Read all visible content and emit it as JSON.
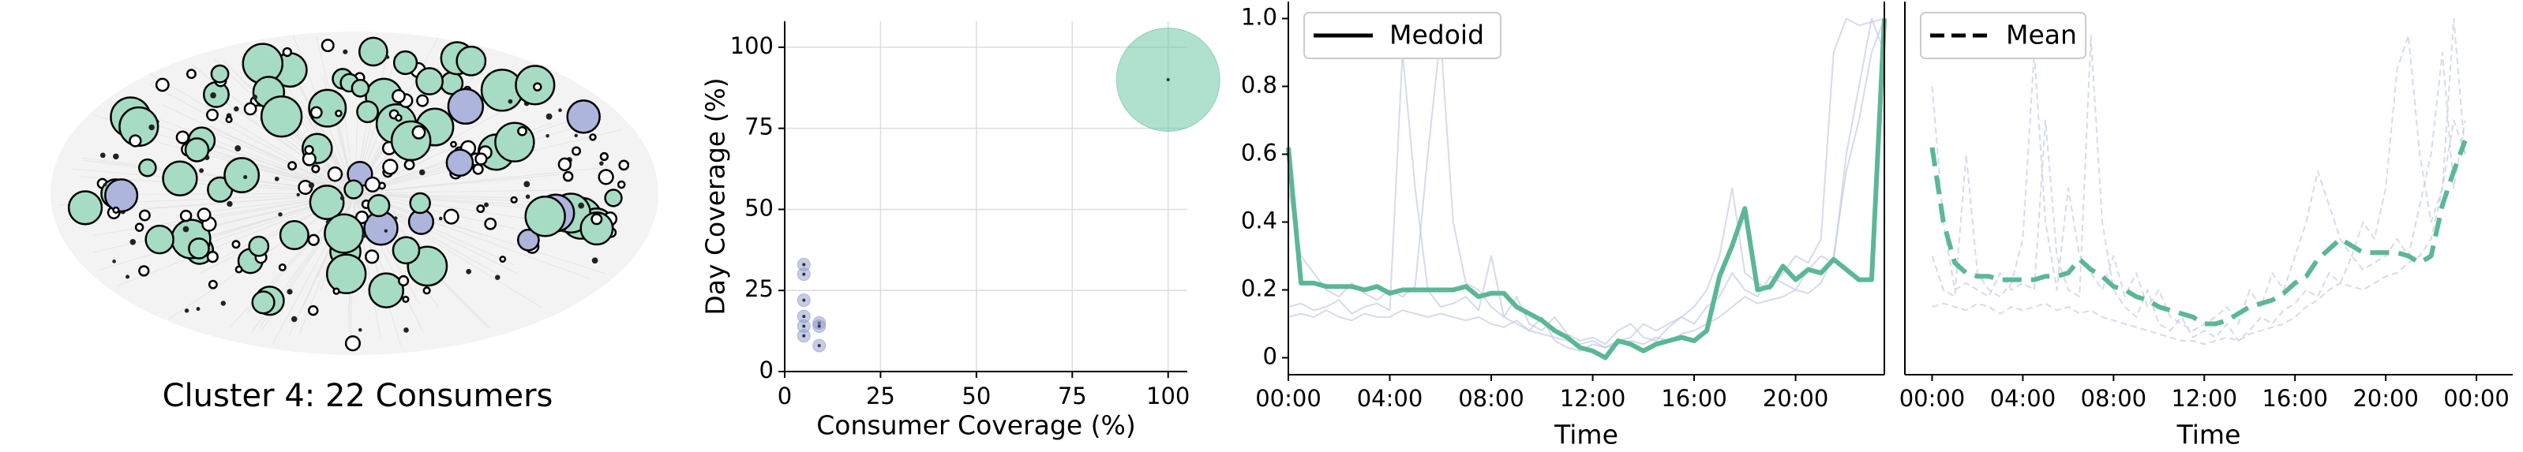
{
  "chart_data": [
    {
      "type": "network",
      "title": "Cluster 4: 22 Consumers"
    },
    {
      "type": "scatter",
      "xlabel": "Consumer Coverage (%)",
      "ylabel": "Day Coverage (%)",
      "xlim": [
        0,
        105
      ],
      "ylim": [
        0,
        108
      ],
      "xticks": [
        0,
        25,
        50,
        75,
        100
      ],
      "yticks": [
        0,
        25,
        50,
        75,
        100
      ],
      "grid": true,
      "series": [
        {
          "color": "#8e9acb",
          "x": [
            5,
            5,
            5,
            5,
            5,
            5,
            9,
            9,
            9
          ],
          "values": [
            33,
            30,
            22,
            17,
            14,
            11,
            15,
            14,
            8
          ],
          "sizes": [
            1,
            1,
            1,
            1,
            1,
            1,
            1,
            1,
            1
          ]
        },
        {
          "color": "#5fc39a",
          "x": [
            100
          ],
          "values": [
            90
          ],
          "sizes": [
            22
          ]
        }
      ]
    },
    {
      "type": "line",
      "xlabel": "Time",
      "legend": "upper left",
      "grid": false,
      "x": [
        0,
        0.5,
        1,
        1.5,
        2,
        2.5,
        3,
        3.5,
        4,
        4.5,
        5,
        5.5,
        6,
        6.5,
        7,
        7.5,
        8,
        8.5,
        9,
        9.5,
        10,
        10.5,
        11,
        11.5,
        12,
        12.5,
        13,
        13.5,
        14,
        14.5,
        15,
        15.5,
        16,
        16.5,
        17,
        17.5,
        18,
        18.5,
        19,
        19.5,
        20,
        20.5,
        21,
        21.5,
        22,
        22.5,
        23,
        23.5
      ],
      "xlim": [
        0,
        23.5
      ],
      "xticks": [
        {
          "value": 0,
          "label": "00:00"
        },
        {
          "value": 4,
          "label": "04:00"
        },
        {
          "value": 8,
          "label": "08:00"
        },
        {
          "value": 12,
          "label": "12:00"
        },
        {
          "value": 16,
          "label": "16:00"
        },
        {
          "value": 20,
          "label": "20:00"
        }
      ],
      "ylim": [
        -0.05,
        1.05
      ],
      "yticks": [
        0,
        0.2,
        0.4,
        0.6,
        0.8,
        {
          "value": 1,
          "label": "1.0"
        }
      ],
      "series": [
        {
          "name": "Medoid",
          "color": "#5bb795",
          "linestyle": "solid",
          "values": [
            0.62,
            0.22,
            0.22,
            0.21,
            0.21,
            0.21,
            0.2,
            0.21,
            0.19,
            0.2,
            0.2,
            0.2,
            0.2,
            0.2,
            0.21,
            0.18,
            0.19,
            0.19,
            0.15,
            0.13,
            0.11,
            0.08,
            0.06,
            0.03,
            0.02,
            0,
            0.05,
            0.04,
            0.02,
            0.04,
            0.05,
            0.06,
            0.05,
            0.08,
            0.24,
            0.33,
            0.44,
            0.2,
            0.21,
            0.27,
            0.23,
            0.26,
            0.25,
            0.29,
            0.26,
            0.23,
            0.23,
            1.0
          ]
        }
      ],
      "background_color": "#c5cae6",
      "background_linestyle": "solid",
      "background_series": [
        {
          "values": [
            0.15,
            0.16,
            0.14,
            0.15,
            0.17,
            0.13,
            0.15,
            0.16,
            0.14,
            0.9,
            0.5,
            0.2,
            0.15,
            0.16,
            0.18,
            0.14,
            0.3,
            0.12,
            0.1,
            0.08,
            0.12,
            0.05,
            0.03,
            0.02,
            0.04,
            0.03,
            0.05,
            0.06,
            0.1,
            0.08,
            0.1,
            0.12,
            0.15,
            0.2,
            0.3,
            0.5,
            0.25,
            0.22,
            0.2,
            0.25,
            0.3,
            0.28,
            0.35,
            0.9,
            1.0,
            0.98,
            0.99,
            1.0
          ]
        },
        {
          "values": [
            0.5,
            0.3,
            0.25,
            0.2,
            0.18,
            0.22,
            0.19,
            0.17,
            0.2,
            0.18,
            0.21,
            0.6,
            0.95,
            0.4,
            0.22,
            0.2,
            0.15,
            0.12,
            0.18,
            0.1,
            0.08,
            0.12,
            0.07,
            0.05,
            0.06,
            0.04,
            0.08,
            0.1,
            0.06,
            0.05,
            0.09,
            0.12,
            0.1,
            0.15,
            0.18,
            0.25,
            0.2,
            0.18,
            0.24,
            0.22,
            0.2,
            0.26,
            0.3,
            0.28,
            0.6,
            0.8,
            1.0,
            0.9
          ]
        },
        {
          "values": [
            0.12,
            0.13,
            0.12,
            0.14,
            0.12,
            0.11,
            0.13,
            0.12,
            0.12,
            0.14,
            0.13,
            0.12,
            0.13,
            0.12,
            0.11,
            0.12,
            0.1,
            0.09,
            0.11,
            0.08,
            0.07,
            0.06,
            0.05,
            0.04,
            0.05,
            0.03,
            0.04,
            0.05,
            0.04,
            0.06,
            0.05,
            0.07,
            0.08,
            0.1,
            0.12,
            0.15,
            0.18,
            0.16,
            0.17,
            0.18,
            0.2,
            0.19,
            0.22,
            0.3,
            0.55,
            0.7,
            0.9,
            1.0
          ]
        }
      ]
    },
    {
      "type": "line",
      "xlabel": "Time",
      "legend": "upper left",
      "grid": false,
      "x": [
        0,
        0.5,
        1,
        1.5,
        2,
        2.5,
        3,
        3.5,
        4,
        4.5,
        5,
        5.5,
        6,
        6.5,
        7,
        7.5,
        8,
        8.5,
        9,
        9.5,
        10,
        10.5,
        11,
        11.5,
        12,
        12.5,
        13,
        13.5,
        14,
        14.5,
        15,
        15.5,
        16,
        16.5,
        17,
        17.5,
        18,
        18.5,
        19,
        19.5,
        20,
        20.5,
        21,
        21.5,
        22,
        22.5,
        23,
        23.5
      ],
      "xlim": [
        -1.2,
        25.6
      ],
      "xticks": [
        {
          "value": 0,
          "label": "00:00"
        },
        {
          "value": 4,
          "label": "04:00"
        },
        {
          "value": 8,
          "label": "08:00"
        },
        {
          "value": 12,
          "label": "12:00"
        },
        {
          "value": 16,
          "label": "16:00"
        },
        {
          "value": 20,
          "label": "20:00"
        },
        {
          "value": 24,
          "label": "00:00"
        }
      ],
      "ylim": [
        -0.05,
        1.05
      ],
      "series": [
        {
          "name": "Mean",
          "color": "#5bb795",
          "linestyle": "dashed",
          "values": [
            0.62,
            0.4,
            0.28,
            0.25,
            0.24,
            0.24,
            0.23,
            0.23,
            0.23,
            0.23,
            0.24,
            0.24,
            0.25,
            0.29,
            0.26,
            0.24,
            0.21,
            0.2,
            0.18,
            0.17,
            0.15,
            0.14,
            0.13,
            0.12,
            0.1,
            0.1,
            0.11,
            0.13,
            0.15,
            0.16,
            0.17,
            0.19,
            0.22,
            0.24,
            0.29,
            0.32,
            0.35,
            0.33,
            0.31,
            0.31,
            0.31,
            0.31,
            0.3,
            0.28,
            0.3,
            0.45,
            0.55,
            0.64
          ]
        }
      ],
      "background_color": "#c5cae6",
      "background_linestyle": "dashed",
      "background_series": [
        {
          "values": [
            0.3,
            0.2,
            0.18,
            0.6,
            0.25,
            0.2,
            0.18,
            0.22,
            0.35,
            0.9,
            0.4,
            0.2,
            0.5,
            0.3,
            0.25,
            0.2,
            0.3,
            0.18,
            0.25,
            0.15,
            0.2,
            0.12,
            0.1,
            0.08,
            0.1,
            0.12,
            0.15,
            0.1,
            0.2,
            0.15,
            0.25,
            0.2,
            0.3,
            0.4,
            0.55,
            0.45,
            0.35,
            0.3,
            0.4,
            0.35,
            0.5,
            0.85,
            0.95,
            0.6,
            0.4,
            0.5,
            1.0,
            0.6
          ]
        },
        {
          "values": [
            0.15,
            0.16,
            0.15,
            0.14,
            0.16,
            0.15,
            0.13,
            0.15,
            0.14,
            0.15,
            0.16,
            0.14,
            0.15,
            0.13,
            0.14,
            0.12,
            0.11,
            0.1,
            0.09,
            0.08,
            0.07,
            0.06,
            0.05,
            0.05,
            0.04,
            0.05,
            0.06,
            0.05,
            0.07,
            0.08,
            0.09,
            0.1,
            0.12,
            0.15,
            0.17,
            0.2,
            0.22,
            0.21,
            0.2,
            0.22,
            0.24,
            0.25,
            0.28,
            0.3,
            0.35,
            0.5,
            0.7,
            0.6
          ]
        },
        {
          "values": [
            0.8,
            0.4,
            0.2,
            0.22,
            0.2,
            0.18,
            0.25,
            0.2,
            0.22,
            0.2,
            0.7,
            0.3,
            0.2,
            0.18,
            0.95,
            0.4,
            0.2,
            0.15,
            0.12,
            0.2,
            0.1,
            0.08,
            0.12,
            0.06,
            0.08,
            0.06,
            0.1,
            0.05,
            0.08,
            0.12,
            0.1,
            0.14,
            0.16,
            0.2,
            0.18,
            0.25,
            0.22,
            0.3,
            0.26,
            0.28,
            0.3,
            0.35,
            0.3,
            0.45,
            0.6,
            0.9,
            0.5,
            0.7
          ]
        }
      ]
    }
  ]
}
